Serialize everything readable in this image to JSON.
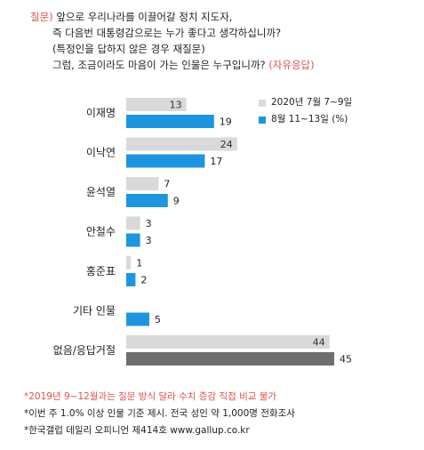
{
  "question": {
    "label": "질문)",
    "lines": [
      "앞으로 우리나라를 이끌어갈 정치 지도자,",
      "즉 다음번 대통령감으로는 누가 좋다고 생각하십니까?",
      "(특정인을 답하지 않은 경우 재질문)",
      "그럼, 조금이라도 마음이 가는 인물은 누구입니까?"
    ],
    "highlight": "(자유응답)"
  },
  "legend": {
    "series1": "2020년 7월 7~9일",
    "series2": "8월 11~13일 (%)"
  },
  "footnotes": {
    "note1": "*2019년 9~12월과는 질문 방식 달라 수치 증감 직접 비교 불가",
    "note2": "*이번 주 1.0% 이상 인물 기준 제시. 전국 성인 약 1,000명 전화조사",
    "note3": "*한국갤럽 데일리 오피니언 제414호 www.gallup.co.kr"
  },
  "colors": {
    "series1": "#d9d9d9",
    "series2": "#1f95e0",
    "last_series2": "#6e6e6e",
    "accent_red": "#d9534f"
  },
  "chart_data": {
    "type": "bar",
    "orientation": "horizontal",
    "categories": [
      "이재명",
      "이낙연",
      "윤석열",
      "안철수",
      "홍준표",
      "기타 인물",
      "없음/응답거절"
    ],
    "series": [
      {
        "name": "2020년 7월 7~9일",
        "values": [
          13,
          24,
          7,
          3,
          1,
          null,
          44
        ]
      },
      {
        "name": "8월 11~13일 (%)",
        "values": [
          19,
          17,
          9,
          3,
          2,
          5,
          45
        ]
      }
    ],
    "xlim": [
      0,
      50
    ],
    "grid": false,
    "legend_position": "top-right"
  }
}
